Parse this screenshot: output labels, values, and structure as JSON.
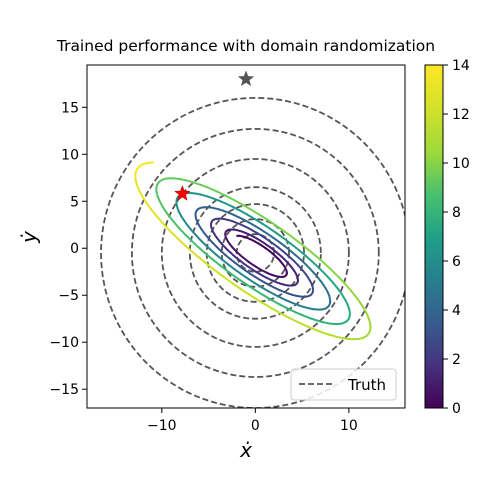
{
  "chart_data": {
    "type": "line",
    "title": "Trained performance with domain randomization",
    "xlabel": "ẋ",
    "ylabel": "ẏ",
    "xlim": [
      -18,
      16
    ],
    "ylim": [
      -17,
      19.5
    ],
    "xticks": [
      -10,
      0,
      10
    ],
    "yticks": [
      -15,
      -10,
      -5,
      0,
      5,
      10,
      15
    ],
    "grid": false,
    "legend": {
      "placement": "lower right",
      "entries": [
        "Truth"
      ]
    },
    "colorbar": {
      "range": [
        0,
        14
      ],
      "ticks": [
        0,
        2,
        4,
        6,
        8,
        10,
        12,
        14
      ],
      "colormap": "viridis"
    },
    "truth": {
      "name": "Truth",
      "style": "dashed",
      "color": "#555555",
      "center": [
        0,
        -0.5
      ],
      "radii": [
        16.5,
        13.2,
        10.0,
        7.0,
        5.2,
        3.6,
        2.0
      ]
    },
    "trained": {
      "center": [
        0.3,
        -0.7
      ],
      "angle_deg": -35,
      "loops": [
        {
          "a": 16.0,
          "b": 4.3,
          "t": 14.0
        },
        {
          "a": 13.3,
          "b": 3.5,
          "t": 10.6
        },
        {
          "a": 10.7,
          "b": 2.9,
          "t": 7.2
        },
        {
          "a": 8.2,
          "b": 2.3,
          "t": 4.4
        },
        {
          "a": 6.2,
          "b": 1.8,
          "t": 2.4
        },
        {
          "a": 4.3,
          "b": 1.3,
          "t": 1.0
        }
      ]
    },
    "markers": [
      {
        "name": "truth-start",
        "x": -1.0,
        "y": 18.0,
        "color": "#555555"
      },
      {
        "name": "trained-start",
        "x": -7.8,
        "y": 5.8,
        "color": "#ff0000"
      }
    ]
  }
}
